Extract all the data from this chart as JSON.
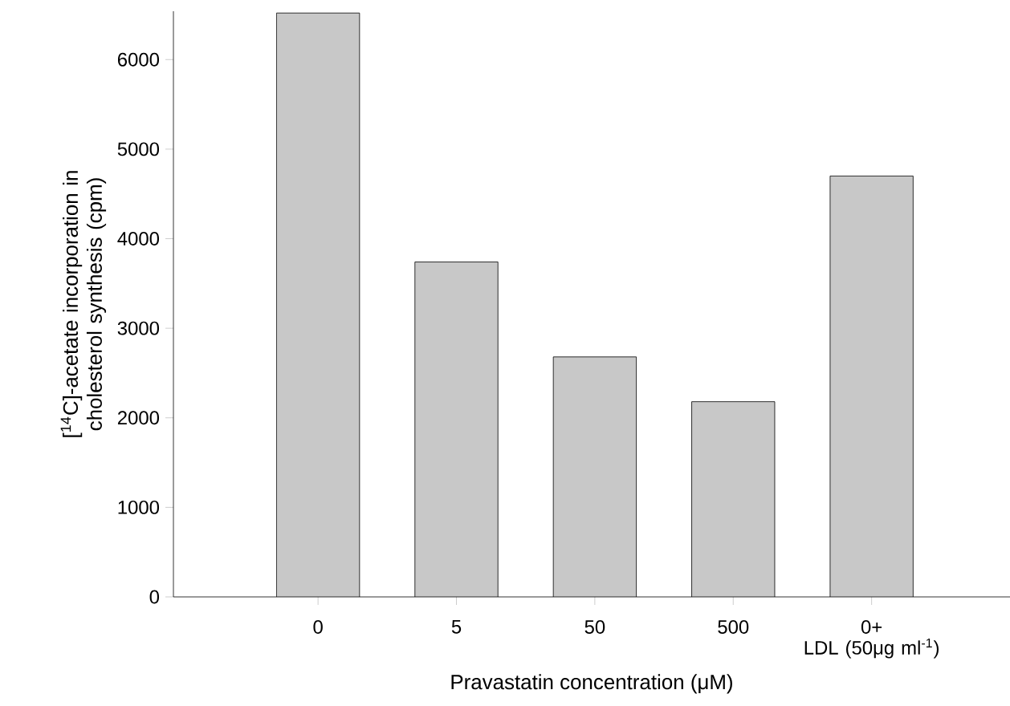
{
  "chart_data": {
    "type": "bar",
    "xlabel": "Pravastatin concentration (μM)",
    "ylabel": "[$^{14}$C]-acetate incorporation in cholesterol synthesis (cpm)",
    "categories": [
      "0",
      "5",
      "50",
      "500",
      "0+\nLDL (50μg ml$^{-1}$)"
    ],
    "values": [
      6520,
      3740,
      2680,
      2180,
      4700
    ],
    "color": "#c8c8c8",
    "ylim": [
      0,
      6540
    ],
    "yticks": [
      0,
      1000,
      2000,
      3000,
      4000,
      5000,
      6000
    ],
    "grid": false
  }
}
